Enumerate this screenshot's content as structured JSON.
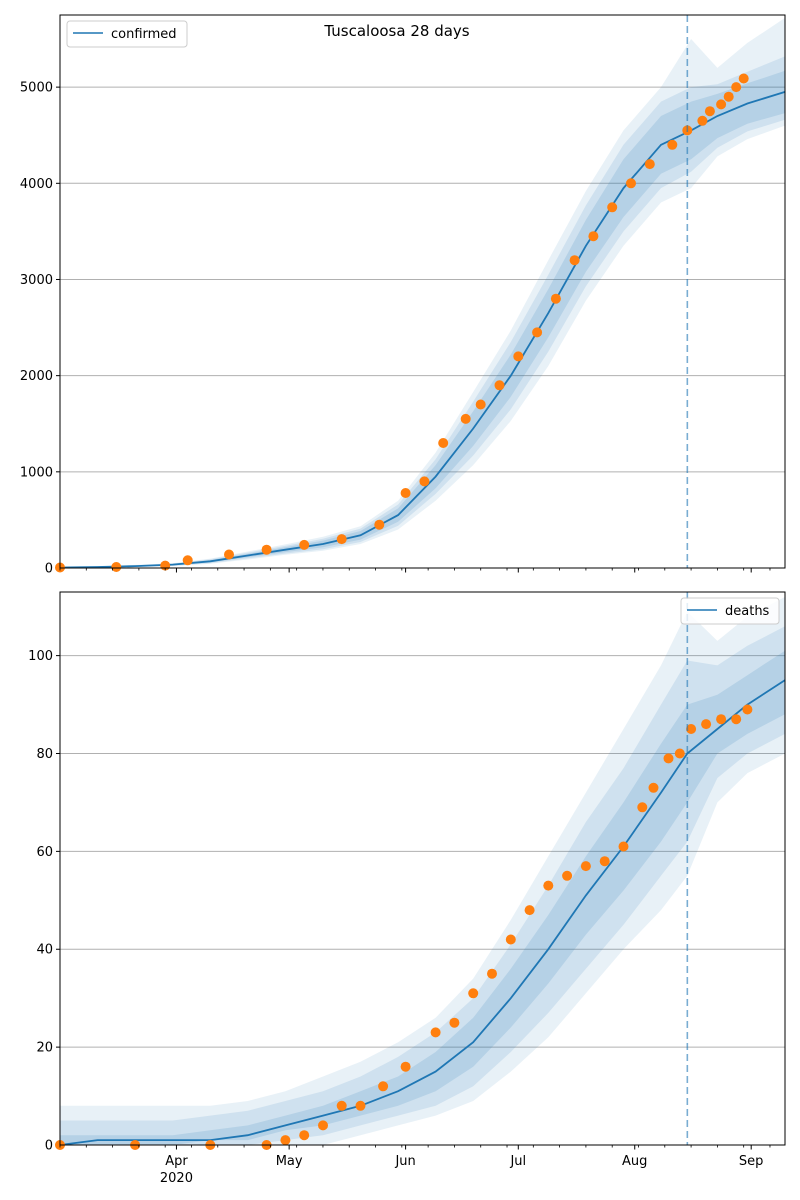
{
  "figure": {
    "title": "Tuscaloosa 28 days"
  },
  "x_axis": {
    "month_ticks": [
      {
        "day": 31,
        "label": "Apr",
        "sublabel": "2020"
      },
      {
        "day": 61,
        "label": "May",
        "sublabel": ""
      },
      {
        "day": 92,
        "label": "Jun",
        "sublabel": ""
      },
      {
        "day": 122,
        "label": "Jul",
        "sublabel": ""
      },
      {
        "day": 153,
        "label": "Aug",
        "sublabel": ""
      },
      {
        "day": 184,
        "label": "Sep",
        "sublabel": ""
      }
    ],
    "start_date": "2020-03-03",
    "end_date": "2020-09-12",
    "forecast_date": "2020-08-17"
  },
  "colors": {
    "model_line": "#1f77b4",
    "observed": "#ff7f0e",
    "band": "#1f77b4",
    "grid": "#b0b0b0"
  },
  "chart_data": [
    {
      "type": "line",
      "panel": "top",
      "legend": "confirmed",
      "legend_position": "top-left",
      "grid": "horizontal",
      "ylim": [
        0,
        5750
      ],
      "yticks": [
        0,
        1000,
        2000,
        3000,
        4000,
        5000
      ],
      "model": {
        "name": "confirmed",
        "days": [
          0,
          10,
          20,
          30,
          40,
          50,
          60,
          70,
          80,
          90,
          100,
          110,
          120,
          130,
          140,
          150,
          160,
          168,
          175,
          183,
          193
        ],
        "median": [
          5,
          10,
          20,
          35,
          70,
          130,
          190,
          250,
          340,
          550,
          950,
          1450,
          2000,
          2650,
          3350,
          3950,
          4400,
          4550,
          4700,
          4830,
          4950
        ],
        "band_inner": [
          [
            3,
            7
          ],
          [
            8,
            12
          ],
          [
            15,
            25
          ],
          [
            28,
            42
          ],
          [
            58,
            82
          ],
          [
            112,
            148
          ],
          [
            165,
            215
          ],
          [
            215,
            285
          ],
          [
            295,
            385
          ],
          [
            480,
            620
          ],
          [
            830,
            1070
          ],
          [
            1270,
            1630
          ],
          [
            1780,
            2220
          ],
          [
            2400,
            2900
          ],
          [
            3080,
            3620
          ],
          [
            3650,
            4250
          ],
          [
            4100,
            4700
          ],
          [
            4250,
            4850
          ],
          [
            4470,
            4930
          ],
          [
            4620,
            5040
          ],
          [
            4730,
            5170
          ]
        ],
        "band_mid": [
          [
            2,
            9
          ],
          [
            6,
            14
          ],
          [
            12,
            28
          ],
          [
            24,
            46
          ],
          [
            50,
            90
          ],
          [
            100,
            160
          ],
          [
            150,
            230
          ],
          [
            195,
            305
          ],
          [
            270,
            410
          ],
          [
            440,
            660
          ],
          [
            770,
            1130
          ],
          [
            1170,
            1730
          ],
          [
            1650,
            2350
          ],
          [
            2250,
            3050
          ],
          [
            2930,
            3770
          ],
          [
            3500,
            4400
          ],
          [
            3950,
            4850
          ],
          [
            4120,
            5000
          ],
          [
            4370,
            5030
          ],
          [
            4540,
            5160
          ],
          [
            4660,
            5320
          ]
        ],
        "band_outer": [
          [
            1,
            11
          ],
          [
            4,
            16
          ],
          [
            10,
            32
          ],
          [
            20,
            50
          ],
          [
            44,
            98
          ],
          [
            88,
            172
          ],
          [
            138,
            245
          ],
          [
            180,
            325
          ],
          [
            250,
            435
          ],
          [
            400,
            700
          ],
          [
            700,
            1200
          ],
          [
            1070,
            1830
          ],
          [
            1530,
            2470
          ],
          [
            2100,
            3200
          ],
          [
            2780,
            3920
          ],
          [
            3350,
            4550
          ],
          [
            3800,
            5000
          ],
          [
            3950,
            5500
          ],
          [
            4280,
            5200
          ],
          [
            4460,
            5460
          ],
          [
            4600,
            5720
          ]
        ]
      },
      "observed": {
        "name": "observed confirmed",
        "days": [
          0,
          15,
          28,
          34,
          45,
          55,
          65,
          75,
          85,
          92,
          97,
          102,
          108,
          112,
          117,
          122,
          127,
          132,
          137,
          142,
          147,
          152,
          157,
          163,
          167,
          171,
          173,
          176,
          178,
          180,
          182
        ],
        "values": [
          5,
          10,
          25,
          80,
          140,
          190,
          240,
          300,
          450,
          780,
          900,
          1300,
          1550,
          1700,
          1900,
          2200,
          2450,
          2800,
          3200,
          3450,
          3750,
          4000,
          4200,
          4400,
          4550,
          4650,
          4750,
          4820,
          4900,
          5000,
          5090
        ]
      }
    },
    {
      "type": "line",
      "panel": "bottom",
      "legend": "deaths",
      "legend_position": "top-right",
      "grid": "horizontal",
      "ylim": [
        0,
        113
      ],
      "yticks": [
        0,
        20,
        40,
        60,
        80,
        100
      ],
      "model": {
        "name": "deaths",
        "days": [
          0,
          10,
          20,
          30,
          40,
          50,
          60,
          70,
          80,
          90,
          100,
          110,
          120,
          130,
          140,
          150,
          160,
          167,
          175,
          183,
          193
        ],
        "median": [
          0,
          1,
          1,
          1,
          1,
          2,
          4,
          6,
          8,
          11,
          15,
          21,
          30,
          40,
          51,
          61,
          72,
          80,
          85,
          90,
          95
        ],
        "band_inner": [
          [
            0,
            2
          ],
          [
            0,
            2
          ],
          [
            0,
            2
          ],
          [
            0,
            2
          ],
          [
            1,
            3
          ],
          [
            1,
            4
          ],
          [
            3,
            6
          ],
          [
            4,
            8
          ],
          [
            6,
            11
          ],
          [
            8,
            14
          ],
          [
            11,
            19
          ],
          [
            16,
            26
          ],
          [
            24,
            36
          ],
          [
            33,
            47
          ],
          [
            43,
            59
          ],
          [
            52,
            70
          ],
          [
            62,
            82
          ],
          [
            70,
            90
          ],
          [
            80,
            92
          ],
          [
            84,
            96
          ],
          [
            88,
            101
          ]
        ],
        "band_mid": [
          [
            0,
            5
          ],
          [
            0,
            5
          ],
          [
            0,
            5
          ],
          [
            0,
            5
          ],
          [
            0,
            6
          ],
          [
            0,
            7
          ],
          [
            1,
            9
          ],
          [
            2,
            11
          ],
          [
            4,
            14
          ],
          [
            6,
            18
          ],
          [
            8,
            23
          ],
          [
            12,
            30
          ],
          [
            19,
            41
          ],
          [
            27,
            53
          ],
          [
            36,
            66
          ],
          [
            45,
            77
          ],
          [
            55,
            90
          ],
          [
            62,
            99
          ],
          [
            75,
            98
          ],
          [
            80,
            102
          ],
          [
            84,
            106
          ]
        ],
        "band_outer": [
          [
            0,
            8
          ],
          [
            0,
            8
          ],
          [
            0,
            8
          ],
          [
            0,
            8
          ],
          [
            0,
            8
          ],
          [
            0,
            9
          ],
          [
            0,
            11
          ],
          [
            0,
            14
          ],
          [
            2,
            17
          ],
          [
            4,
            21
          ],
          [
            6,
            26
          ],
          [
            9,
            34
          ],
          [
            15,
            46
          ],
          [
            22,
            59
          ],
          [
            31,
            72
          ],
          [
            40,
            85
          ],
          [
            48,
            98
          ],
          [
            55,
            109
          ],
          [
            70,
            103
          ],
          [
            76,
            108
          ],
          [
            80,
            112
          ]
        ]
      },
      "observed": {
        "name": "observed deaths",
        "days": [
          0,
          20,
          40,
          55,
          60,
          65,
          70,
          75,
          80,
          86,
          92,
          100,
          105,
          110,
          115,
          120,
          125,
          130,
          135,
          140,
          145,
          150,
          155,
          158,
          162,
          165,
          168,
          172,
          176,
          180,
          183
        ],
        "values": [
          0,
          0,
          0,
          0,
          1,
          2,
          4,
          8,
          8,
          12,
          16,
          23,
          25,
          31,
          35,
          42,
          48,
          53,
          55,
          57,
          58,
          61,
          69,
          73,
          79,
          80,
          85,
          86,
          87,
          87,
          89
        ]
      }
    }
  ]
}
